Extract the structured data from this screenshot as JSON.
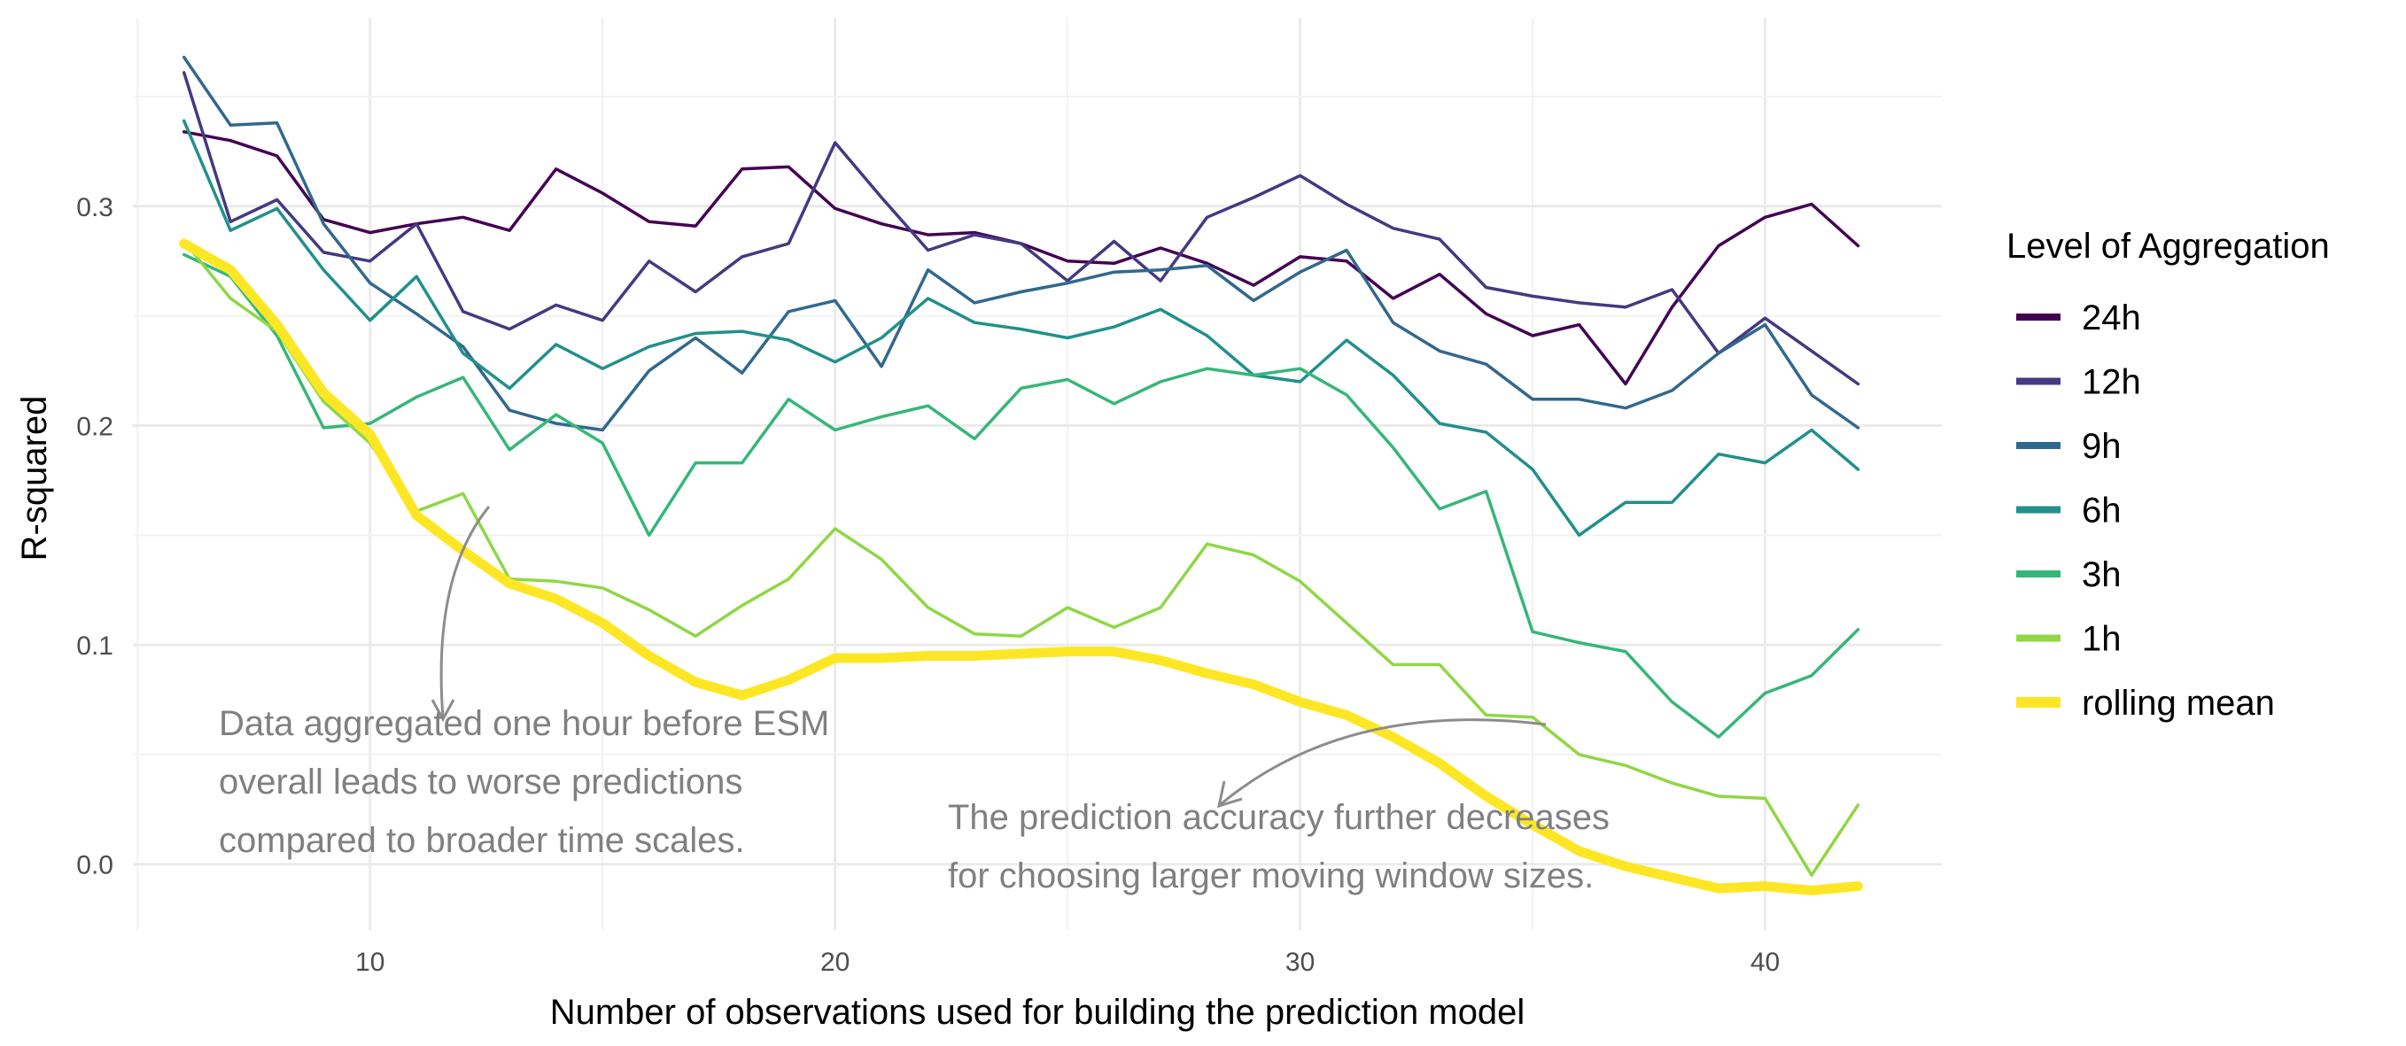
{
  "chart_data": {
    "type": "line",
    "title": "",
    "xlabel": "Number of observations used for building the prediction model",
    "ylabel": "R-squared",
    "xlim": [
      4.9,
      43.8
    ],
    "ylim": [
      -0.03,
      0.386
    ],
    "x_ticks": [
      10,
      20,
      30,
      40
    ],
    "x_tick_labels": [
      "10",
      "20",
      "30",
      "40"
    ],
    "y_ticks": [
      0.0,
      0.1,
      0.2,
      0.3
    ],
    "y_tick_labels": [
      "0.0",
      "0.1",
      "0.2",
      "0.3"
    ],
    "grid": true,
    "legend": {
      "title": "Level of Aggregation",
      "position": "right"
    },
    "x": [
      6,
      7,
      8,
      9,
      10,
      11,
      12,
      13,
      14,
      15,
      16,
      17,
      18,
      19,
      20,
      21,
      22,
      23,
      24,
      25,
      26,
      27,
      28,
      29,
      30,
      31,
      32,
      33,
      34,
      35,
      36,
      37,
      38,
      39,
      40,
      41,
      42
    ],
    "series": [
      {
        "name": "24h",
        "color": "#440154",
        "width": "thin",
        "values": [
          0.334,
          0.33,
          0.323,
          0.294,
          0.288,
          0.292,
          0.295,
          0.289,
          0.317,
          0.306,
          0.293,
          0.291,
          0.317,
          0.318,
          0.299,
          0.292,
          0.287,
          0.288,
          0.283,
          0.275,
          0.274,
          0.281,
          0.274,
          0.264,
          0.277,
          0.275,
          0.258,
          0.269,
          0.251,
          0.241,
          0.246,
          0.219,
          0.254,
          0.282,
          0.295,
          0.301,
          0.282
        ]
      },
      {
        "name": "12h",
        "color": "#443983",
        "width": "thin",
        "values": [
          0.361,
          0.293,
          0.303,
          0.279,
          0.275,
          0.292,
          0.252,
          0.244,
          0.255,
          0.248,
          0.275,
          0.261,
          0.277,
          0.283,
          0.329,
          0.304,
          0.28,
          0.287,
          0.283,
          0.266,
          0.284,
          0.266,
          0.295,
          0.304,
          0.314,
          0.301,
          0.29,
          0.285,
          0.263,
          0.259,
          0.256,
          0.254,
          0.262,
          0.233,
          0.249,
          0.234,
          0.219
        ]
      },
      {
        "name": "9h",
        "color": "#31688E",
        "width": "thin",
        "values": [
          0.368,
          0.337,
          0.338,
          0.292,
          0.265,
          0.251,
          0.236,
          0.207,
          0.201,
          0.198,
          0.225,
          0.24,
          0.224,
          0.252,
          0.257,
          0.227,
          0.271,
          0.256,
          0.261,
          0.265,
          0.27,
          0.271,
          0.273,
          0.257,
          0.27,
          0.28,
          0.247,
          0.234,
          0.228,
          0.212,
          0.212,
          0.208,
          0.216,
          0.233,
          0.246,
          0.214,
          0.199
        ]
      },
      {
        "name": "6h",
        "color": "#21908C",
        "width": "thin",
        "values": [
          0.339,
          0.289,
          0.299,
          0.271,
          0.248,
          0.268,
          0.233,
          0.217,
          0.237,
          0.226,
          0.236,
          0.242,
          0.243,
          0.239,
          0.229,
          0.24,
          0.258,
          0.247,
          0.244,
          0.24,
          0.245,
          0.253,
          0.241,
          0.223,
          0.22,
          0.239,
          0.223,
          0.201,
          0.197,
          0.18,
          0.15,
          0.165,
          0.165,
          0.187,
          0.183,
          0.198,
          0.18
        ]
      },
      {
        "name": "3h",
        "color": "#35B779",
        "width": "thin",
        "values": [
          0.278,
          0.268,
          0.241,
          0.199,
          0.201,
          0.213,
          0.222,
          0.189,
          0.205,
          0.192,
          0.15,
          0.183,
          0.183,
          0.212,
          0.198,
          0.204,
          0.209,
          0.194,
          0.217,
          0.221,
          0.21,
          0.22,
          0.226,
          0.223,
          0.226,
          0.214,
          0.19,
          0.162,
          0.17,
          0.106,
          0.101,
          0.097,
          0.074,
          0.058,
          0.078,
          0.086,
          0.107
        ]
      },
      {
        "name": "1h",
        "color": "#8FD744",
        "width": "thin",
        "values": [
          0.284,
          0.258,
          0.243,
          0.211,
          0.192,
          0.161,
          0.169,
          0.13,
          0.129,
          0.126,
          0.116,
          0.104,
          0.118,
          0.13,
          0.153,
          0.139,
          0.117,
          0.105,
          0.104,
          0.117,
          0.108,
          0.117,
          0.146,
          0.141,
          0.129,
          0.11,
          0.091,
          0.091,
          0.068,
          0.067,
          0.05,
          0.045,
          0.037,
          0.031,
          0.03,
          -0.005,
          0.027
        ]
      },
      {
        "name": "rolling mean",
        "color": "#FDE725",
        "width": "thick",
        "values": [
          0.283,
          0.271,
          0.246,
          0.215,
          0.196,
          0.159,
          0.143,
          0.128,
          0.121,
          0.11,
          0.095,
          0.083,
          0.077,
          0.084,
          0.094,
          0.094,
          0.095,
          0.095,
          0.096,
          0.097,
          0.097,
          0.093,
          0.087,
          0.082,
          0.074,
          0.068,
          0.058,
          0.046,
          0.031,
          0.018,
          0.006,
          -0.001,
          -0.006,
          -0.011,
          -0.01,
          -0.012,
          -0.01
        ]
      }
    ],
    "annotations": [
      {
        "lines": [
          "Data aggregated one hour before ESM",
          "overall leads to worse predictions",
          "compared to broader time scales."
        ]
      },
      {
        "lines": [
          "The prediction accuracy further decreases",
          "for choosing larger moving window sizes."
        ]
      }
    ]
  }
}
